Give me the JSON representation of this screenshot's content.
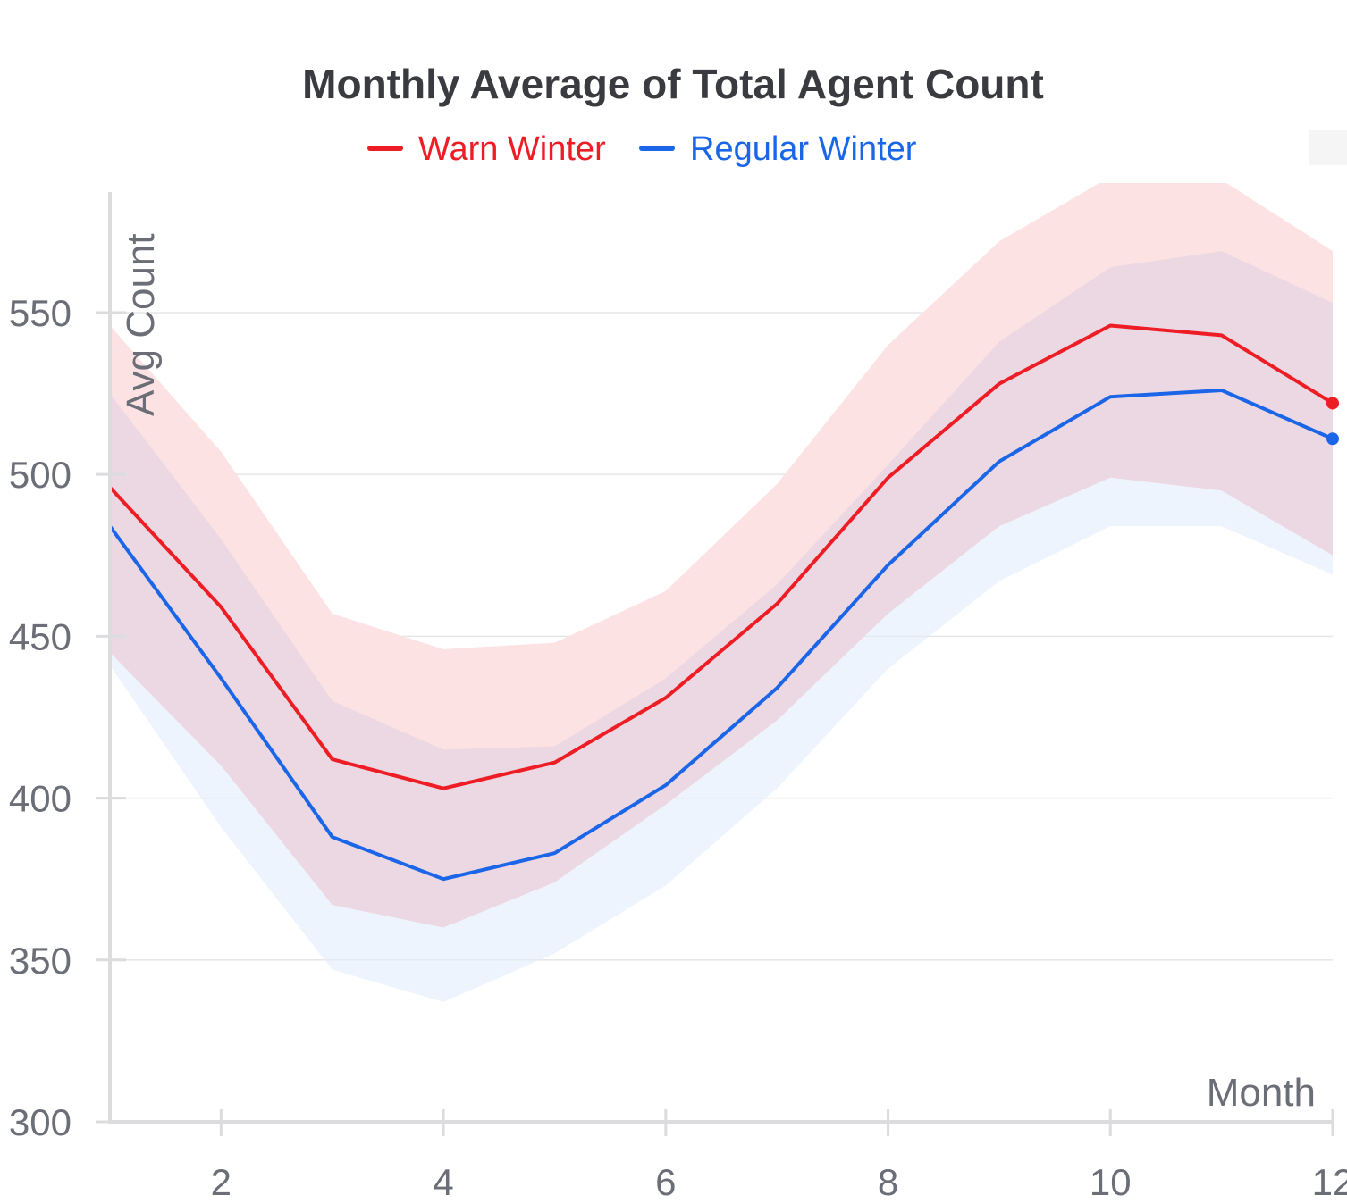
{
  "chart_data": {
    "type": "line",
    "title": "Monthly Average of Total Agent Count",
    "xlabel": "Month",
    "ylabel": "Avg Count",
    "xlim": [
      1,
      12
    ],
    "ylim": [
      300,
      590
    ],
    "x_ticks": [
      2,
      4,
      6,
      8,
      10,
      12
    ],
    "y_ticks": [
      300,
      350,
      400,
      450,
      500,
      550
    ],
    "grid": "horizontal",
    "legend_position": "top",
    "x": [
      1,
      2,
      3,
      4,
      5,
      6,
      7,
      8,
      9,
      10,
      11,
      12
    ],
    "series": [
      {
        "name": "Warn Winter",
        "color": "#ee1c24",
        "band_color": "#fde2e4",
        "values": [
          496,
          459,
          412,
          403,
          411,
          431,
          460,
          499,
          528,
          546,
          543,
          522
        ],
        "upper": [
          546,
          507,
          457,
          446,
          448,
          464,
          497,
          540,
          572,
          592,
          591,
          569
        ],
        "lower": [
          445,
          410,
          367,
          360,
          374,
          398,
          424,
          457,
          484,
          499,
          495,
          475
        ]
      },
      {
        "name": "Regular Winter",
        "color": "#1b66e8",
        "band_color": "#e3ecfc",
        "values": [
          484,
          437,
          388,
          375,
          383,
          404,
          434,
          472,
          504,
          524,
          526,
          511
        ],
        "upper": [
          525,
          480,
          430,
          415,
          416,
          437,
          466,
          503,
          541,
          564,
          569,
          553
        ],
        "lower": [
          441,
          391,
          347,
          337,
          352,
          373,
          403,
          440,
          467,
          484,
          484,
          469
        ]
      }
    ]
  }
}
